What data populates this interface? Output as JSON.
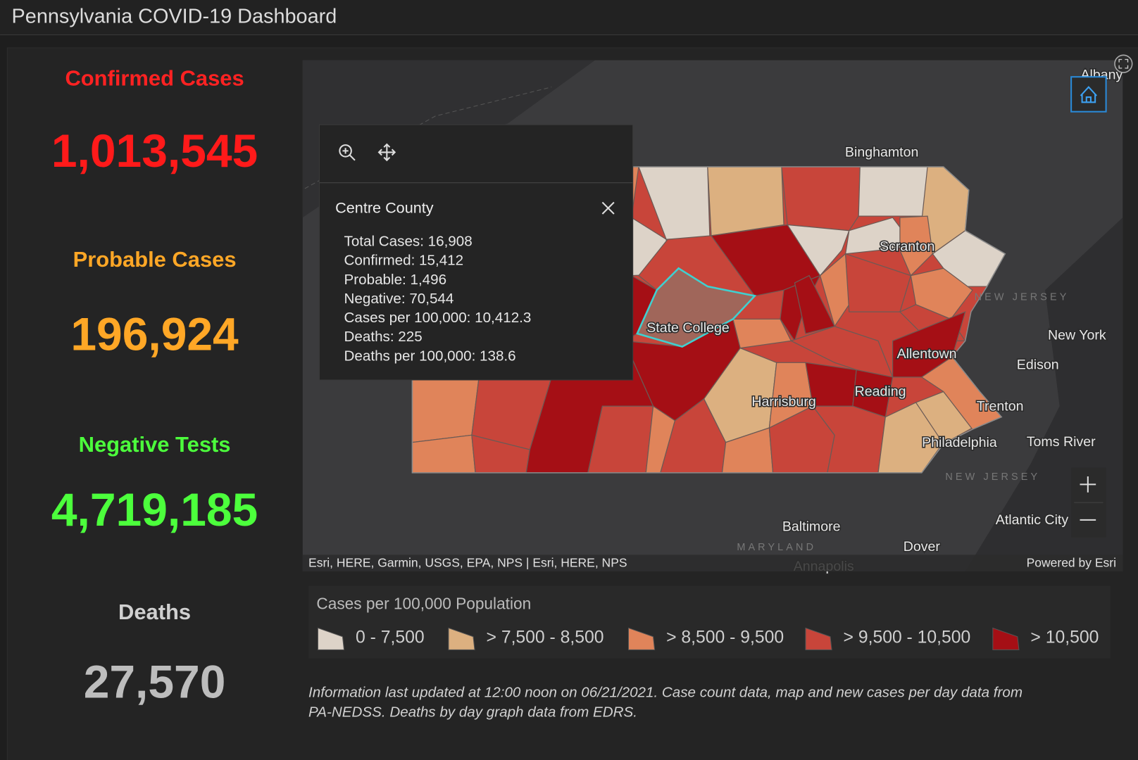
{
  "header": {
    "title": "Pennsylvania COVID-19 Dashboard"
  },
  "stats": [
    {
      "label": "Confirmed Cases",
      "value": "1,013,545"
    },
    {
      "label": "Probable Cases",
      "value": "196,924"
    },
    {
      "label": "Negative Tests",
      "value": "4,719,185"
    },
    {
      "label": "Deaths",
      "value": "27,570"
    }
  ],
  "map": {
    "places": [
      "Albany",
      "Binghamton",
      "Scranton",
      "State College",
      "Allentown",
      "Reading",
      "Harrisburg",
      "Philadelphia",
      "Trenton",
      "Toms River",
      "New York",
      "Edison",
      "Baltimore",
      "Dover",
      "Atlantic City",
      "Annapolis"
    ],
    "regions": [
      "NEW JERSEY",
      "MARYLAND"
    ],
    "attribution": "Esri, HERE, Garmin, USGS, EPA, NPS | Esri, HERE, NPS",
    "powered_by": "Powered by Esri"
  },
  "popup": {
    "title": "Centre County",
    "lines": [
      "Total Cases: 16,908",
      "Confirmed: 15,412",
      "Probable: 1,496",
      "Negative: 70,544",
      "Cases per 100,000: 10,412.3",
      "Deaths: 225",
      "Deaths per 100,000: 138.6"
    ]
  },
  "legend": {
    "title": "Cases per 100,000 Population",
    "items": [
      "0 - 7,500",
      "> 7,500 - 8,500",
      "> 8,500 - 9,500",
      "> 9,500 - 10,500",
      "> 10,500"
    ]
  },
  "footnote": [
    "Information last updated at 12:00 noon on 06/21/2021. Case count data, map and new cases per day data from",
    "PA-NEDSS.  Deaths by day graph data from EDRS."
  ]
}
